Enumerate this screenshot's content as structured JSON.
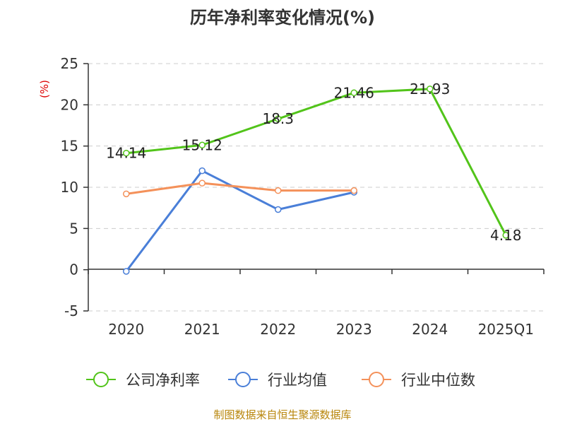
{
  "chart_data": {
    "type": "line",
    "title": "历年净利率变化情况(%)",
    "ylabel": "(%)",
    "categories": [
      "2020",
      "2021",
      "2022",
      "2023",
      "2024",
      "2025Q1"
    ],
    "ylim": [
      -5,
      25
    ],
    "yticks": [
      -5,
      0,
      5,
      10,
      15,
      20,
      25
    ],
    "grid": true,
    "legend_position": "bottom",
    "series": [
      {
        "name": "公司净利率",
        "color": "#52c41a",
        "values": [
          14.14,
          15.12,
          18.3,
          21.46,
          21.93,
          4.18
        ],
        "labels": [
          "14.14",
          "15.12",
          "18.3",
          "21.46",
          "21.93",
          "4.18"
        ]
      },
      {
        "name": "行业均值",
        "color": "#4a7fd8",
        "values": [
          -0.2,
          12.0,
          7.3,
          9.4,
          null,
          null
        ]
      },
      {
        "name": "行业中位数",
        "color": "#f4915a",
        "values": [
          9.2,
          10.5,
          9.6,
          9.6,
          null,
          null
        ]
      }
    ]
  },
  "source": "制图数据来自恒生聚源数据库"
}
